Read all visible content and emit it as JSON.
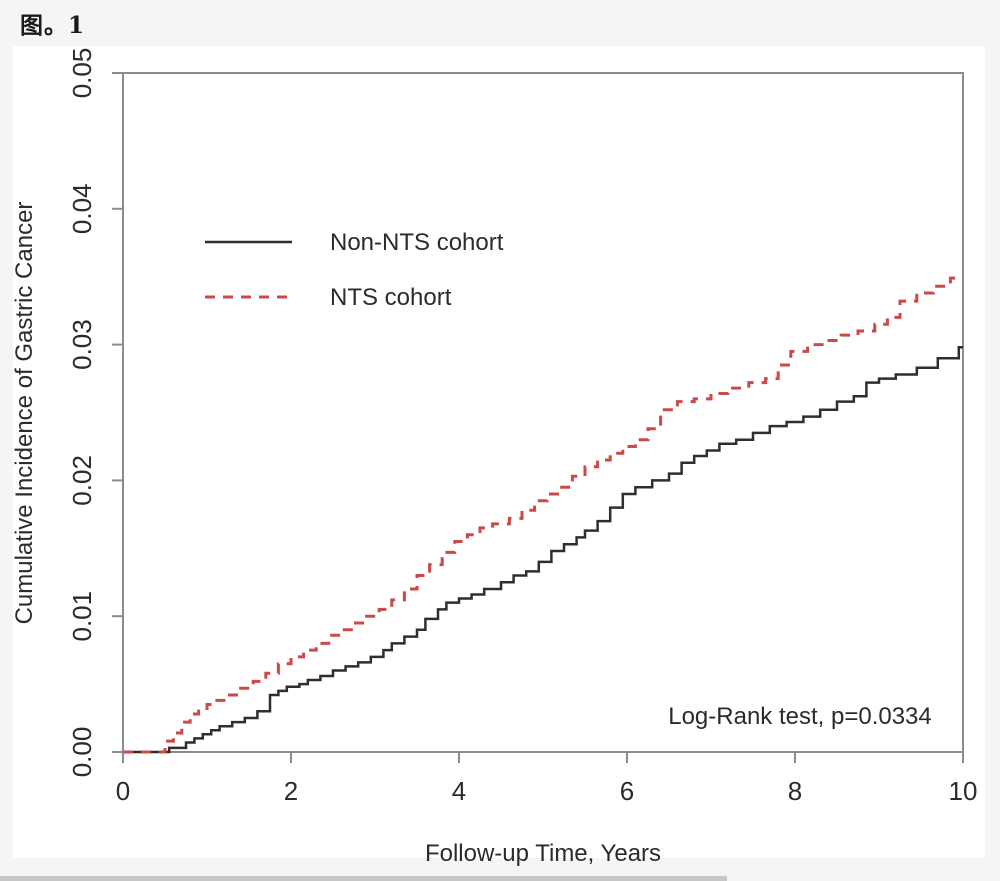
{
  "page": {
    "title": "图。1"
  },
  "colors": {
    "axis": "#8c8c8c",
    "text": "#2b2b2b",
    "non_nts_line": "#2e2e2e",
    "nts_line": "#cb4a47",
    "page_background": "#f5f5f5",
    "figure_background": "#ffffff",
    "scrollbar_thumb": "#c6c6c6"
  },
  "chart_data": {
    "type": "line",
    "subtype": "step-cumulative-incidence",
    "title": "图。1",
    "xlabel": "Follow-up Time, Years",
    "ylabel": "Cumulative Incidence of Gastric Cancer",
    "xlim": [
      0,
      10
    ],
    "ylim": [
      0,
      0.05
    ],
    "xticks": [
      0,
      2,
      4,
      6,
      8,
      10
    ],
    "ytick_labels": [
      "0.00",
      "0.01",
      "0.02",
      "0.03",
      "0.04",
      "0.05"
    ],
    "ytick_values": [
      0,
      0.01,
      0.02,
      0.03,
      0.04,
      0.05
    ],
    "grid": false,
    "legend_position": "upper-left-inside",
    "annotation": "Log-Rank test, p=0.0334",
    "legend": [
      {
        "label": "Non-NTS cohort",
        "color": "#2e2e2e",
        "dash": "solid"
      },
      {
        "label": "NTS cohort",
        "color": "#cb4a47",
        "dash": "dashed"
      }
    ],
    "series": [
      {
        "name": "Non-NTS cohort",
        "color": "#2e2e2e",
        "style": "solid",
        "width": 2.5,
        "x": [
          0,
          0.55,
          0.75,
          0.85,
          0.95,
          1.05,
          1.15,
          1.3,
          1.45,
          1.6,
          1.75,
          1.85,
          1.95,
          2.1,
          2.2,
          2.35,
          2.5,
          2.65,
          2.8,
          2.95,
          3.1,
          3.2,
          3.35,
          3.5,
          3.6,
          3.75,
          3.85,
          4.0,
          4.15,
          4.3,
          4.5,
          4.65,
          4.8,
          4.95,
          5.1,
          5.25,
          5.4,
          5.5,
          5.65,
          5.8,
          5.95,
          6.1,
          6.3,
          6.5,
          6.65,
          6.8,
          6.95,
          7.1,
          7.3,
          7.5,
          7.7,
          7.9,
          8.1,
          8.3,
          8.5,
          8.7,
          8.85,
          9.0,
          9.2,
          9.45,
          9.7,
          9.95
        ],
        "y": [
          0,
          0.0003,
          0.0007,
          0.001,
          0.0013,
          0.0016,
          0.0019,
          0.0022,
          0.0025,
          0.003,
          0.0042,
          0.0045,
          0.0048,
          0.005,
          0.0053,
          0.0056,
          0.006,
          0.0063,
          0.0066,
          0.007,
          0.0075,
          0.008,
          0.0085,
          0.009,
          0.0098,
          0.0105,
          0.011,
          0.0113,
          0.0116,
          0.012,
          0.0125,
          0.013,
          0.0133,
          0.014,
          0.0148,
          0.0153,
          0.0158,
          0.0163,
          0.017,
          0.018,
          0.019,
          0.0195,
          0.02,
          0.0205,
          0.0213,
          0.0218,
          0.0222,
          0.0227,
          0.023,
          0.0235,
          0.024,
          0.0243,
          0.0247,
          0.0252,
          0.0258,
          0.0262,
          0.0272,
          0.0275,
          0.0278,
          0.0283,
          0.029,
          0.0298
        ]
      },
      {
        "name": "NTS cohort",
        "color": "#cb4a47",
        "style": "dashed",
        "width": 3,
        "x": [
          0,
          0.5,
          0.6,
          0.7,
          0.8,
          0.9,
          1.0,
          1.1,
          1.25,
          1.4,
          1.55,
          1.7,
          1.85,
          2.0,
          2.15,
          2.3,
          2.45,
          2.6,
          2.75,
          2.9,
          3.05,
          3.2,
          3.35,
          3.5,
          3.65,
          3.8,
          3.95,
          4.1,
          4.25,
          4.4,
          4.6,
          4.75,
          4.9,
          5.05,
          5.2,
          5.35,
          5.5,
          5.65,
          5.8,
          5.95,
          6.1,
          6.25,
          6.4,
          6.6,
          6.8,
          7.0,
          7.2,
          7.45,
          7.65,
          7.8,
          7.95,
          8.15,
          8.35,
          8.55,
          8.75,
          8.95,
          9.1,
          9.25,
          9.45,
          9.65,
          9.85
        ],
        "y": [
          0,
          0.0008,
          0.0014,
          0.0022,
          0.0028,
          0.0032,
          0.0035,
          0.0038,
          0.0042,
          0.0047,
          0.0052,
          0.0058,
          0.0065,
          0.007,
          0.0075,
          0.008,
          0.0086,
          0.009,
          0.0095,
          0.01,
          0.0105,
          0.0112,
          0.012,
          0.013,
          0.0138,
          0.0147,
          0.0155,
          0.016,
          0.0165,
          0.0168,
          0.0172,
          0.0178,
          0.0185,
          0.019,
          0.0195,
          0.0203,
          0.021,
          0.0215,
          0.022,
          0.0225,
          0.023,
          0.0238,
          0.0252,
          0.0258,
          0.026,
          0.0264,
          0.0268,
          0.0272,
          0.0275,
          0.0285,
          0.0295,
          0.03,
          0.0303,
          0.0307,
          0.031,
          0.0315,
          0.032,
          0.0332,
          0.0338,
          0.0343,
          0.0349
        ]
      }
    ]
  }
}
